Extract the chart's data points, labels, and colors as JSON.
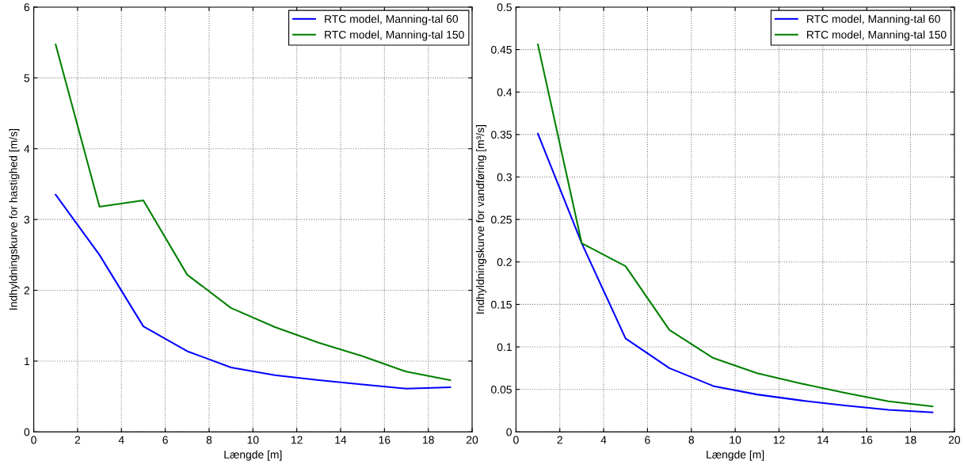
{
  "chart_data": [
    {
      "type": "line",
      "xlabel": "Længde [m]",
      "ylabel": "Indhyldningskurve for hastighed [m/s]",
      "x": [
        1,
        3,
        5,
        7,
        9,
        11,
        13,
        15,
        17,
        19
      ],
      "series": [
        {
          "name": "RTC model, Manning-tal 60",
          "color": "#0000ff",
          "values": [
            3.35,
            2.5,
            1.49,
            1.14,
            0.91,
            0.8,
            0.73,
            0.67,
            0.61,
            0.63
          ]
        },
        {
          "name": "RTC model, Manning-tal 150",
          "color": "#008000",
          "values": [
            5.47,
            3.18,
            3.27,
            2.22,
            1.75,
            1.48,
            1.26,
            1.07,
            0.85,
            0.73
          ]
        }
      ],
      "xlim": [
        0,
        20
      ],
      "xticks": [
        0,
        2,
        4,
        6,
        8,
        10,
        12,
        14,
        16,
        18,
        20
      ],
      "ylim": [
        0,
        6
      ],
      "yticks": [
        0,
        1,
        2,
        3,
        4,
        5,
        6
      ],
      "grid": true,
      "legend": "top right",
      "line_style": "solid",
      "marker": "none"
    },
    {
      "type": "line",
      "xlabel": "Længde [m]",
      "ylabel": "Indhyldningskurve for vandføring [m³/s]",
      "x": [
        1,
        3,
        5,
        7,
        9,
        11,
        13,
        15,
        17,
        19
      ],
      "series": [
        {
          "name": "RTC model, Manning-tal 60",
          "color": "#0000ff",
          "values": [
            0.351,
            0.222,
            0.11,
            0.075,
            0.054,
            0.044,
            0.037,
            0.031,
            0.026,
            0.023
          ]
        },
        {
          "name": "RTC model, Manning-tal 150",
          "color": "#008000",
          "values": [
            0.456,
            0.222,
            0.195,
            0.12,
            0.087,
            0.069,
            0.057,
            0.046,
            0.036,
            0.03
          ]
        }
      ],
      "xlim": [
        0,
        20
      ],
      "xticks": [
        0,
        2,
        4,
        6,
        8,
        10,
        12,
        14,
        16,
        18,
        20
      ],
      "ylim": [
        0,
        0.5
      ],
      "yticks": [
        0,
        0.05,
        0.1,
        0.15,
        0.2,
        0.25,
        0.3,
        0.35,
        0.4,
        0.45,
        0.5
      ],
      "grid": true,
      "legend": "top right",
      "line_style": "solid",
      "marker": "none"
    }
  ]
}
